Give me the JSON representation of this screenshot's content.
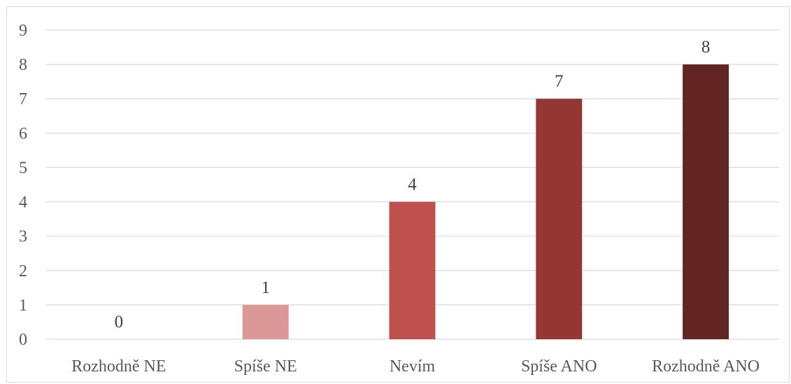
{
  "chart_data": {
    "type": "bar",
    "title": "",
    "xlabel": "",
    "ylabel": "",
    "categories": [
      "Rozhodně NE",
      "Spíše NE",
      "Nevím",
      "Spíše ANO",
      "Rozhodně ANO"
    ],
    "values": [
      0,
      1,
      4,
      7,
      8
    ],
    "data_labels": [
      "0",
      "1",
      "4",
      "7",
      "8"
    ],
    "y_ticks": [
      "0",
      "1",
      "2",
      "3",
      "4",
      "5",
      "6",
      "7",
      "8",
      "9"
    ],
    "ylim": [
      0,
      9
    ],
    "grid": true,
    "legend": "none",
    "colors": [
      "#f2d7d6",
      "#dc9896",
      "#c0504d",
      "#943634",
      "#632523"
    ]
  }
}
